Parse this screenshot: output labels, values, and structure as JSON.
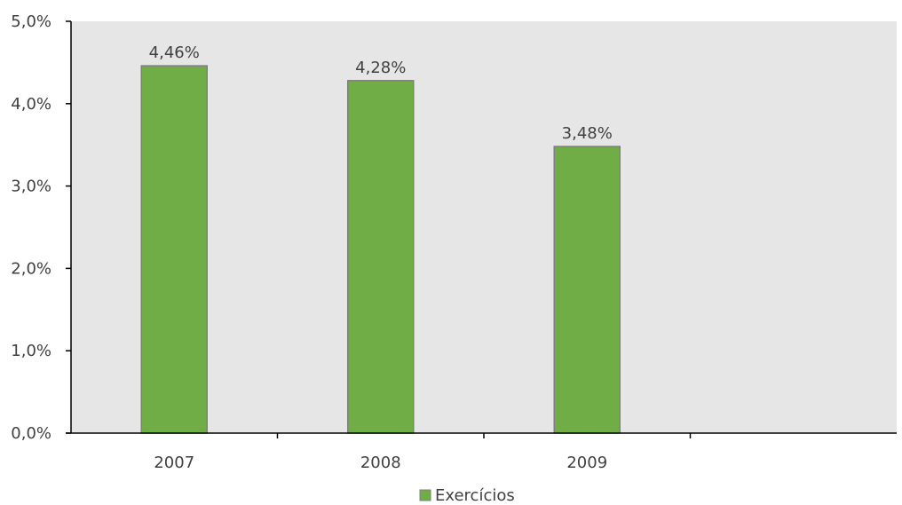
{
  "chart_data": {
    "type": "bar",
    "categories": [
      "2007",
      "2008",
      "2009",
      ""
    ],
    "series": [
      {
        "name": "Exercícios",
        "values": [
          4.46,
          4.28,
          3.48,
          null
        ],
        "value_labels": [
          "4,46%",
          "4,28%",
          "3,48%",
          ""
        ]
      }
    ],
    "y_ticks": [
      "0,0%",
      "1,0%",
      "2,0%",
      "3,0%",
      "4,0%",
      "5,0%"
    ],
    "ylim": [
      0,
      5
    ],
    "grid": false,
    "legend_position": "bottom"
  },
  "colors": {
    "plot_background": "#e6e6e6",
    "bar_fill": "#70ad47",
    "bar_stroke": "#7f7f7f",
    "axis": "#000000",
    "text": "#404040"
  }
}
